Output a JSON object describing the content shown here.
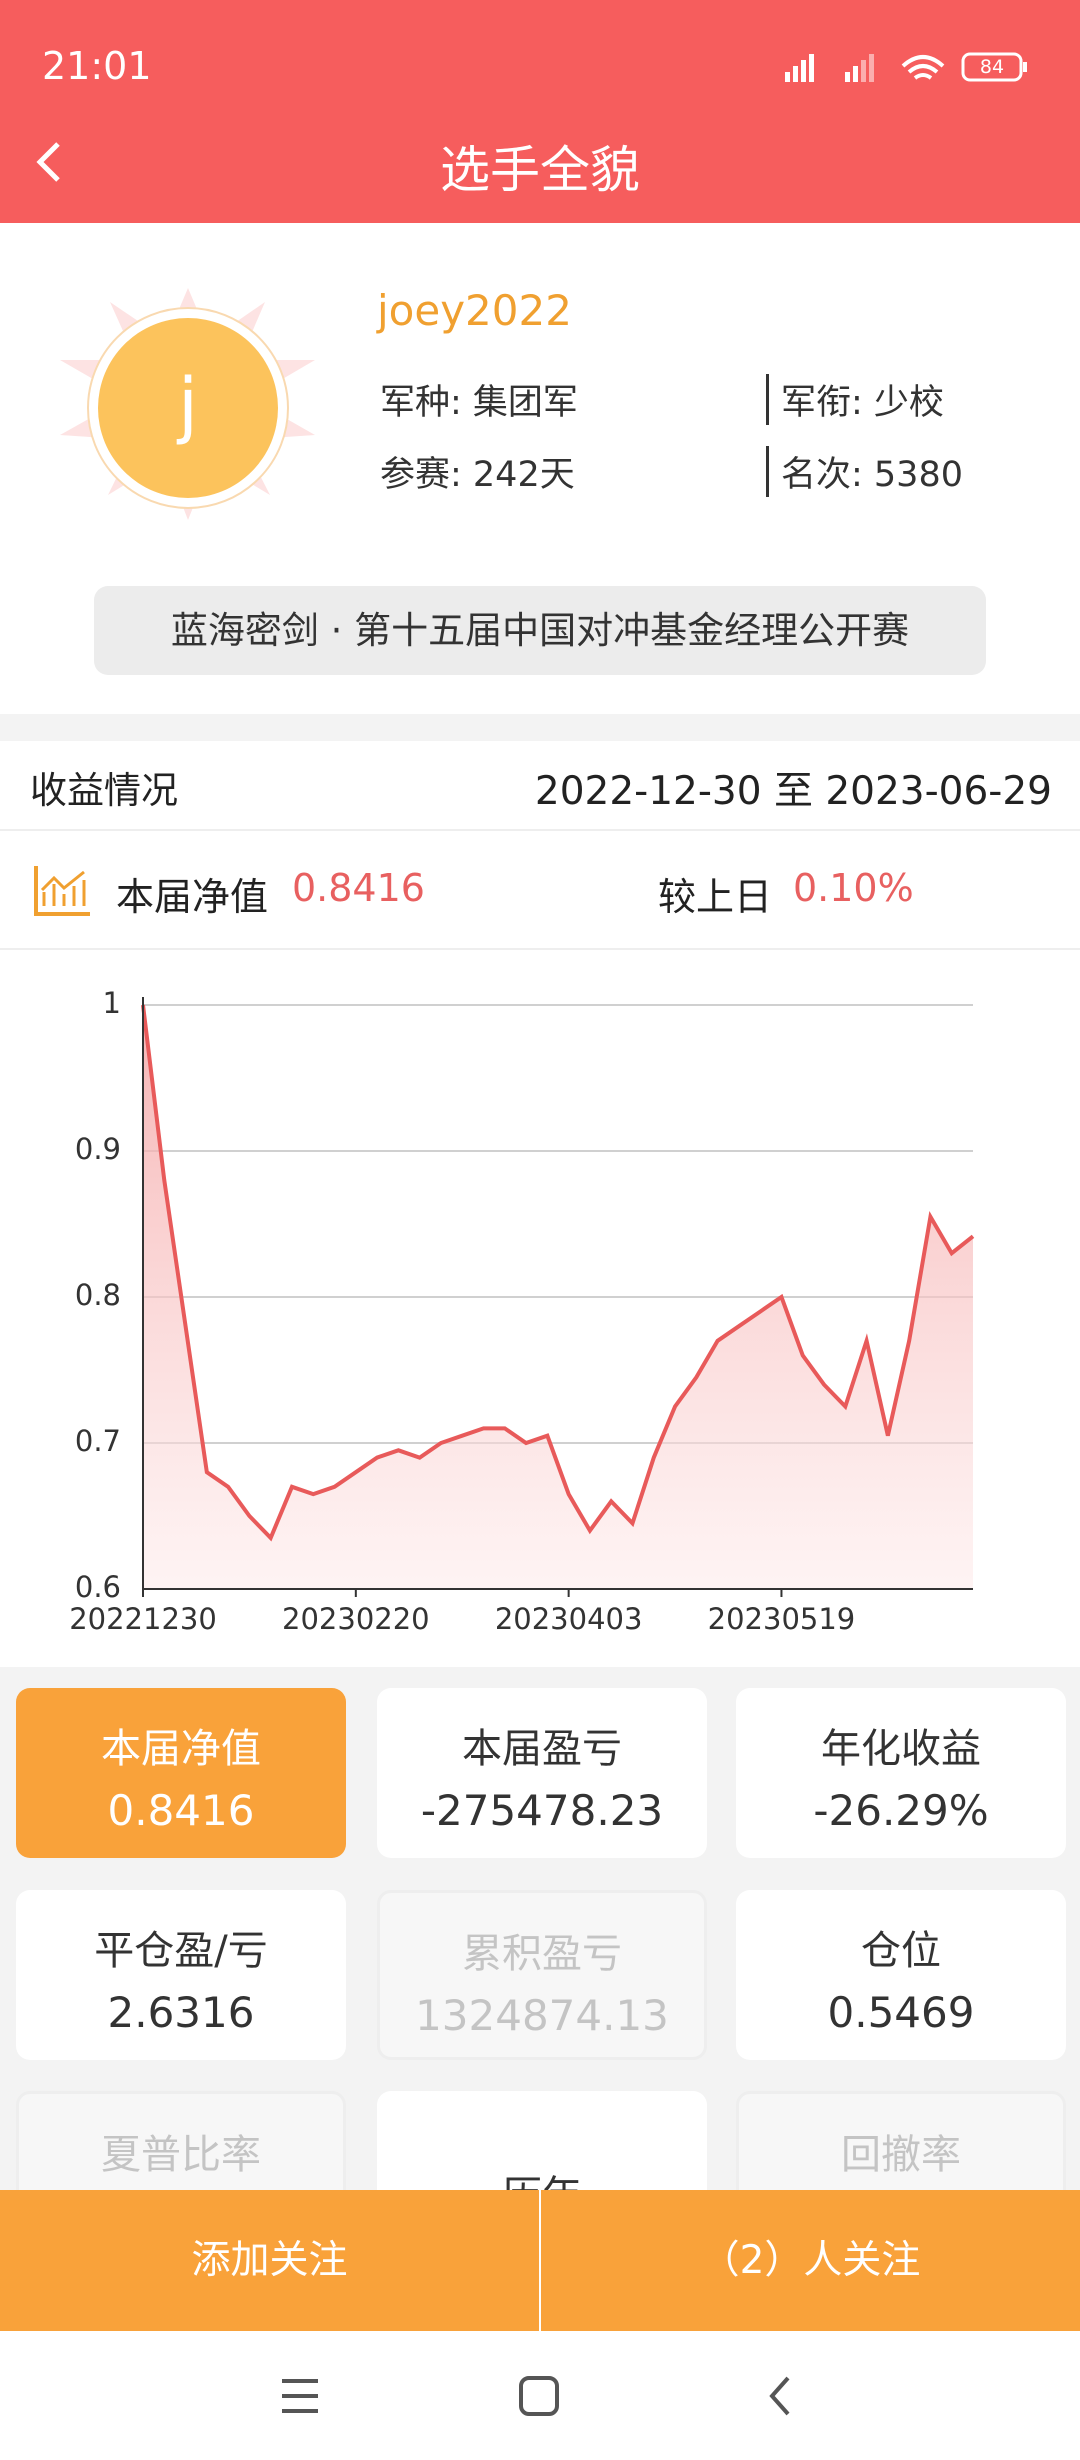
{
  "status_bar": {
    "time": "21:01",
    "battery": "84"
  },
  "header": {
    "title": "选手全貌"
  },
  "profile": {
    "avatar_letter": "j",
    "username": "joey2022",
    "branch": "军种: 集团军",
    "rank": "军衔: 少校",
    "days": "参赛: 242天",
    "position": "名次: 5380"
  },
  "competition": "蓝海密剑 · 第十五届中国对冲基金经理公开赛",
  "returns": {
    "label": "收益情况",
    "date_range": "2022-12-30 至 2023-06-29"
  },
  "summary": {
    "nav_label": "本届净值",
    "nav_value": "0.8416",
    "change_label": "较上日",
    "change_value": "0.10%"
  },
  "chart_data": {
    "type": "area",
    "color": "#e85a5a",
    "categories": [
      "20221230",
      null,
      null,
      null,
      null,
      null,
      null,
      null,
      null,
      null,
      "20230220",
      null,
      null,
      null,
      null,
      null,
      null,
      null,
      null,
      null,
      "20230403",
      null,
      null,
      null,
      null,
      null,
      null,
      null,
      null,
      null,
      "20230519",
      null,
      null,
      null,
      null,
      null,
      null,
      null,
      null,
      null
    ],
    "values": [
      1.0,
      0.88,
      0.78,
      0.68,
      0.67,
      0.65,
      0.635,
      0.67,
      0.665,
      0.67,
      0.68,
      0.69,
      0.695,
      0.69,
      0.7,
      0.705,
      0.71,
      0.71,
      0.7,
      0.705,
      0.665,
      0.64,
      0.66,
      0.645,
      0.69,
      0.725,
      0.745,
      0.77,
      0.78,
      0.79,
      0.8,
      0.76,
      0.74,
      0.725,
      0.77,
      0.705,
      0.77,
      0.855,
      0.83,
      0.8416
    ],
    "ylim": [
      0.6,
      1
    ],
    "yticks": [
      0.6,
      0.7,
      0.8,
      0.9,
      1
    ],
    "grid": true
  },
  "cards": [
    {
      "label": "本届净值",
      "value": "0.8416"
    },
    {
      "label": "本届盈亏",
      "value": "-275478.23"
    },
    {
      "label": "年化收益",
      "value": "-26.29%"
    },
    {
      "label": "平仓盈/亏",
      "value": "2.6316"
    },
    {
      "label": "累积盈亏",
      "value": "1324874.13"
    },
    {
      "label": "仓位",
      "value": "0.5469"
    },
    {
      "label": "夏普比率"
    },
    {
      "label": "历年"
    },
    {
      "label": "回撤率"
    }
  ],
  "buttons": {
    "follow": "添加关注",
    "followers": "（2）人关注"
  }
}
